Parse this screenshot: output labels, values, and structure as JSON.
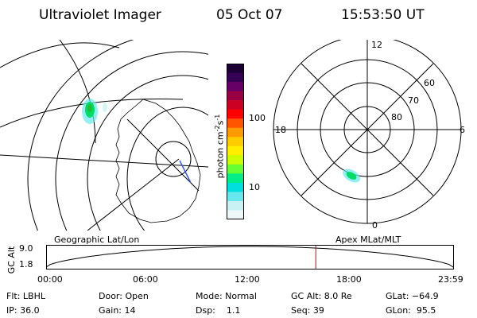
{
  "header": {
    "instrument": "Ultraviolet Imager",
    "date": "05 Oct 07",
    "time": "15:53:50 UT"
  },
  "colorbar": {
    "ticks": [
      "100",
      "10"
    ],
    "units_prefix": "photon cm",
    "units_exp1": "-2",
    "units_mid": "s",
    "units_exp2": "-1",
    "colors": [
      "#1a0033",
      "#330055",
      "#660066",
      "#990044",
      "#cc0022",
      "#ff0000",
      "#ff5500",
      "#ff9900",
      "#ffcc00",
      "#ffee00",
      "#ccff00",
      "#66ff33",
      "#00ee88",
      "#00dddd",
      "#66e8ee",
      "#c8f2f4",
      "#eef8f8"
    ]
  },
  "left_map": {
    "label": "Geographic Lat/Lon"
  },
  "right_map": {
    "label": "Apex MLat/MLT",
    "lat_labels": [
      "80",
      "70",
      "60"
    ],
    "mlt_labels": {
      "top": "12",
      "left": "18",
      "right": "6",
      "bottom": "0"
    }
  },
  "altitude_plot": {
    "ylabel": "GC Alt",
    "yticks": [
      "9.0",
      "1.8"
    ],
    "xticks": [
      "00:00",
      "06:00",
      "12:00",
      "18:00",
      "23:59"
    ],
    "x_range_hours": [
      0,
      24
    ],
    "y_range_re": [
      1.8,
      9.0
    ],
    "current_time_hours": 15.9,
    "marker_color": "#cc0000"
  },
  "status": {
    "filter": "Flt: LBHL",
    "ip": "IP: 36.0",
    "door": "Door: Open",
    "gain": "Gain: 14",
    "mode": "Mode: Normal",
    "dsp": "Dsp:    1.1",
    "gc_alt": "GC Alt: 8.0 Re",
    "seq": "Seq: 39",
    "glat": "GLat: −64.9",
    "glon": "GLon:  95.5"
  }
}
